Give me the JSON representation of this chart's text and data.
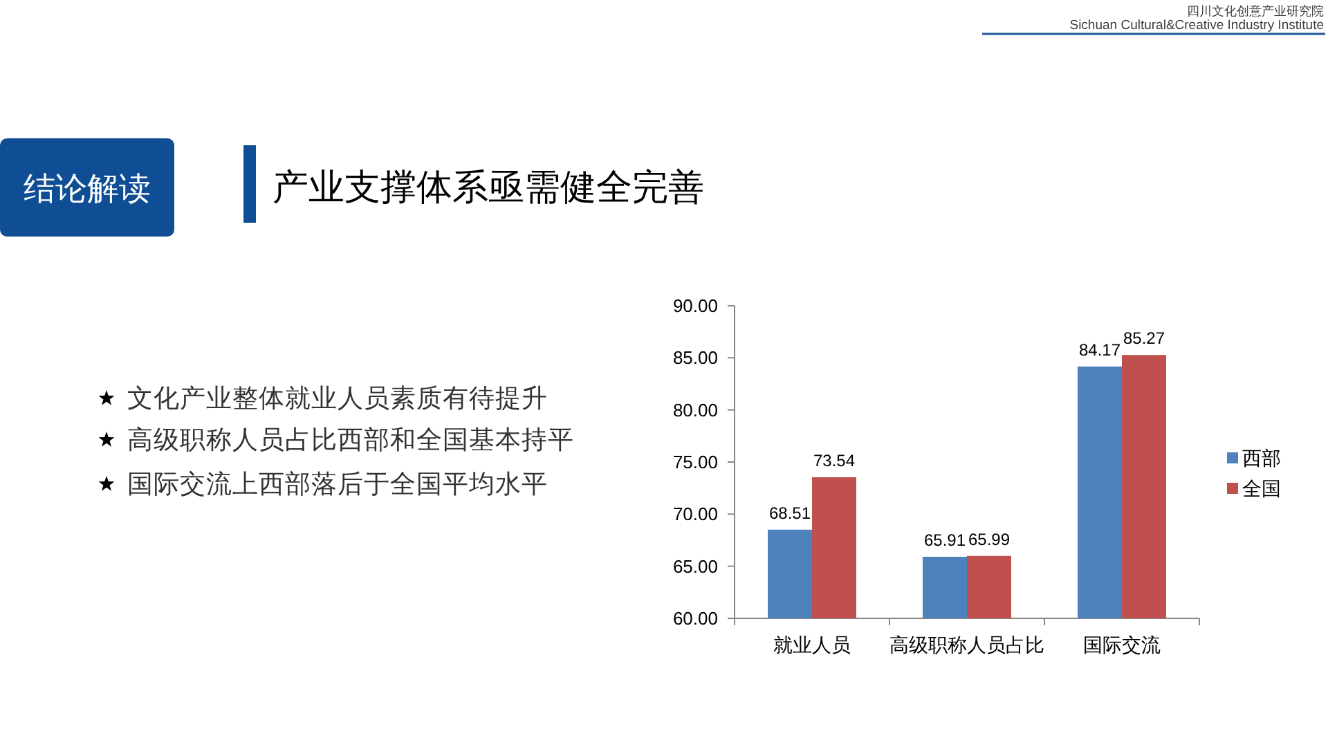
{
  "chart_data": {
    "type": "bar",
    "title": "产业支撑体系亟需健全完善",
    "annotations": [
      "四川文化创意产业研究院",
      "Sichuan Cultural&Creative Industry Institute",
      "结论解读",
      "文化产业整体就业人员素质有待提升",
      "高级职称人员占比西部和全国基本持平",
      "国际交流上西部落后于全国平均水平"
    ],
    "categories": [
      "就业人员",
      "高级职称人员占比",
      "国际交流"
    ],
    "series": [
      {
        "name": "西部",
        "color": "#4f81bd",
        "values": [
          68.51,
          65.91,
          84.17
        ]
      },
      {
        "name": "全国",
        "color": "#c0504d",
        "values": [
          73.54,
          65.99,
          85.27
        ]
      }
    ],
    "ylim": [
      60,
      90
    ],
    "yticks": [
      {
        "value": 60,
        "label": "60.00"
      },
      {
        "value": 65,
        "label": "65.00"
      },
      {
        "value": 70,
        "label": "70.00"
      },
      {
        "value": 75,
        "label": "75.00"
      },
      {
        "value": 80,
        "label": "80.00"
      },
      {
        "value": 85,
        "label": "85.00"
      },
      {
        "value": 90,
        "label": "90.00"
      }
    ],
    "data_labels": true,
    "legend": "right"
  }
}
